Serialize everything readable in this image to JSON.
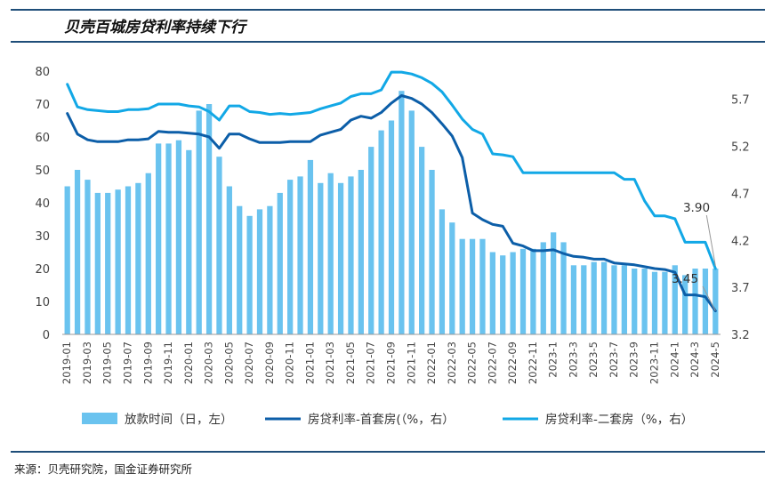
{
  "title": "贝壳百城房贷利率持续下行",
  "source": "来源：贝壳研究院，国金证券研究所",
  "colors": {
    "bar": "#6ac3ef",
    "line1": "#0c5ea8",
    "line2": "#12a8e6",
    "rule": "#1f4e79"
  },
  "chart_data": {
    "type": "bar+line",
    "title": "贝壳百城房贷利率持续下行",
    "categories": [
      "2019-01",
      "2019-02",
      "2019-03",
      "2019-04",
      "2019-05",
      "2019-06",
      "2019-07",
      "2019-08",
      "2019-09",
      "2019-10",
      "2019-11",
      "2019-12",
      "2020-01",
      "2020-02",
      "2020-03",
      "2020-04",
      "2020-05",
      "2020-06",
      "2020-07",
      "2020-08",
      "2020-09",
      "2020-10",
      "2020-11",
      "2020-12",
      "2021-01",
      "2021-02",
      "2021-03",
      "2021-04",
      "2021-05",
      "2021-06",
      "2021-07",
      "2021-08",
      "2021-09",
      "2021-10",
      "2021-11",
      "2021-12",
      "2022-01",
      "2022-02",
      "2022-03",
      "2022-04",
      "2022-05",
      "2022-06",
      "2022-07",
      "2022-08",
      "2022-09",
      "2022-10",
      "2022-11",
      "2022-12",
      "2023-1",
      "2023-2",
      "2023-3",
      "2023-4",
      "2023-5",
      "2023-6",
      "2023-7",
      "2023-8",
      "2023-9",
      "2023-10",
      "2023-11",
      "2023-12",
      "2024-1",
      "2024-2",
      "2024-3",
      "2024-4",
      "2024-5"
    ],
    "x_tick_labels": [
      "2019-01",
      "2019-03",
      "2019-05",
      "2019-07",
      "2019-09",
      "2019-11",
      "2020-01",
      "2020-03",
      "2020-05",
      "2020-07",
      "2020-09",
      "2020-11",
      "2021-01",
      "2021-03",
      "2021-05",
      "2021-07",
      "2021-09",
      "2021-11",
      "2022-01",
      "2022-03",
      "2022-05",
      "2022-07",
      "2022-09",
      "2022-11",
      "2023-1",
      "2023-3",
      "2023-5",
      "2023-7",
      "2023-9",
      "2023-11",
      "2024-1",
      "2024-3",
      "2024-5"
    ],
    "y_left": {
      "min": 0,
      "max": 80,
      "ticks": [
        "0",
        "10",
        "20",
        "30",
        "40",
        "50",
        "60",
        "70",
        "80"
      ]
    },
    "y_right": {
      "min": 3.2,
      "max": 6.0,
      "ticks": [
        "3.2",
        "3.7",
        "4.2",
        "4.7",
        "5.2",
        "5.7"
      ]
    },
    "series": [
      {
        "name": "放款时间（日，左）",
        "type": "bar",
        "axis": "left",
        "values": [
          45,
          50,
          47,
          43,
          43,
          44,
          45,
          46,
          49,
          58,
          58,
          59,
          56,
          68,
          70,
          54,
          45,
          39,
          36,
          38,
          39,
          43,
          47,
          48,
          53,
          46,
          49,
          46,
          48,
          50,
          57,
          62,
          65,
          74,
          68,
          57,
          50,
          38,
          34,
          29,
          29,
          29,
          25,
          24,
          25,
          26,
          26,
          28,
          31,
          28,
          21,
          21,
          22,
          22,
          21,
          21,
          20,
          20,
          19,
          19,
          21,
          18,
          20,
          20,
          20
        ]
      },
      {
        "name": "房贷利率-首套房(（%，右）",
        "type": "line",
        "axis": "right",
        "values": [
          5.55,
          5.33,
          5.27,
          5.25,
          5.25,
          5.25,
          5.27,
          5.27,
          5.28,
          5.36,
          5.35,
          5.35,
          5.34,
          5.33,
          5.3,
          5.18,
          5.33,
          5.33,
          5.28,
          5.24,
          5.24,
          5.24,
          5.25,
          5.25,
          5.25,
          5.32,
          5.35,
          5.38,
          5.48,
          5.52,
          5.5,
          5.56,
          5.66,
          5.74,
          5.71,
          5.65,
          5.56,
          5.44,
          5.31,
          5.08,
          4.49,
          4.42,
          4.37,
          4.35,
          4.17,
          4.14,
          4.09,
          4.09,
          4.1,
          4.06,
          4.03,
          4.02,
          4.0,
          4.0,
          3.96,
          3.95,
          3.94,
          3.92,
          3.9,
          3.89,
          3.86,
          3.62,
          3.62,
          3.6,
          3.45
        ]
      },
      {
        "name": "房贷利率-二套房（%，右）",
        "type": "line",
        "axis": "right",
        "values": [
          5.86,
          5.62,
          5.59,
          5.58,
          5.57,
          5.57,
          5.59,
          5.59,
          5.6,
          5.65,
          5.65,
          5.65,
          5.63,
          5.62,
          5.57,
          5.48,
          5.63,
          5.63,
          5.57,
          5.56,
          5.54,
          5.55,
          5.54,
          5.55,
          5.56,
          5.6,
          5.63,
          5.66,
          5.73,
          5.76,
          5.76,
          5.8,
          5.99,
          5.99,
          5.97,
          5.93,
          5.87,
          5.78,
          5.64,
          5.49,
          5.38,
          5.33,
          5.12,
          5.11,
          5.09,
          4.92,
          4.92,
          4.92,
          4.92,
          4.92,
          4.92,
          4.92,
          4.92,
          4.92,
          4.92,
          4.85,
          4.85,
          4.62,
          4.46,
          4.46,
          4.43,
          4.18,
          4.18,
          4.18,
          3.9
        ]
      }
    ],
    "annotations": [
      {
        "label": "3.90"
      },
      {
        "label": "3.45"
      }
    ],
    "legend": {
      "position": "bottom"
    }
  }
}
